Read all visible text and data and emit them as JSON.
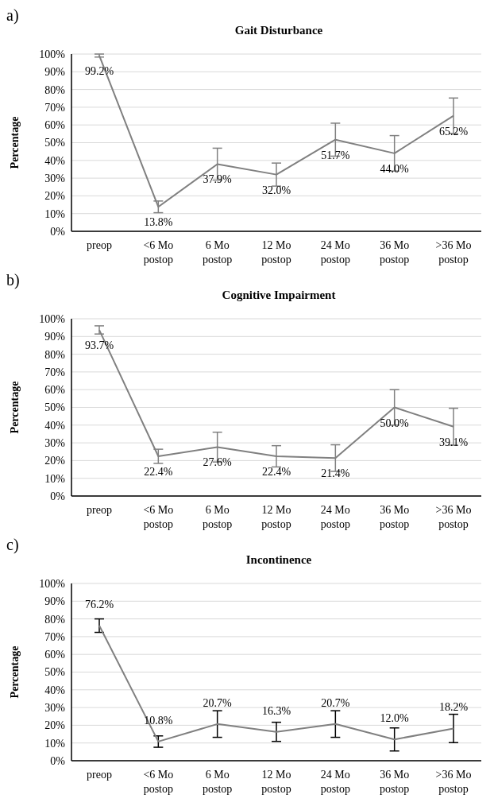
{
  "chart_data": [
    {
      "type": "line",
      "annotations": [
        "a)"
      ],
      "title": "Gait Disturbance",
      "ylabel": "Percentage",
      "categories": [
        "preop",
        "<6 Mo postop",
        "6 Mo postop",
        "12 Mo postop",
        "24 Mo postop",
        "36 Mo postop",
        ">36 Mo postop"
      ],
      "series": [
        {
          "color": "#808080",
          "values": [
            99.2,
            13.8,
            37.9,
            32.0,
            51.7,
            44.0,
            65.2
          ],
          "errors": [
            [
              98.3,
              100
            ],
            3.3,
            9,
            6.5,
            9.3,
            10,
            10
          ],
          "value_labels": [
            "99.2%",
            "13.8%",
            "37.9%",
            "32.0%",
            "51.7%",
            "44.0%",
            "65.2%"
          ]
        }
      ],
      "ylim": [
        0,
        100
      ],
      "yticks": [
        {
          "value": 0,
          "label": "0%"
        },
        {
          "value": 10,
          "label": "10%"
        },
        {
          "value": 20,
          "label": "20%"
        },
        {
          "value": 30,
          "label": "30%"
        },
        {
          "value": 40,
          "label": "40%"
        },
        {
          "value": 50,
          "label": "50%"
        },
        {
          "value": 60,
          "label": "60%"
        },
        {
          "value": 70,
          "label": "70%"
        },
        {
          "value": 80,
          "label": "80%"
        },
        {
          "value": 90,
          "label": "90%"
        },
        {
          "value": 100,
          "label": "100%"
        }
      ],
      "grid": "y",
      "marker": "none",
      "line_style": "solid"
    },
    {
      "type": "line",
      "annotations": [
        "b)"
      ],
      "title": "Cognitive Impairment",
      "ylabel": "Percentage",
      "categories": [
        "preop",
        "<6 Mo postop",
        "6 Mo postop",
        "12 Mo postop",
        "24 Mo postop",
        "36 Mo postop",
        ">36 Mo postop"
      ],
      "series": [
        {
          "color": "#808080",
          "values": [
            93.7,
            22.4,
            27.6,
            22.4,
            21.4,
            50.0,
            39.1
          ],
          "errors": [
            2.3,
            4,
            8.4,
            6,
            7.5,
            10,
            10.4
          ],
          "value_labels": [
            "93.7%",
            "22.4%",
            "27.6%",
            "22.4%",
            "21.4%",
            "50.0%",
            "39.1%"
          ]
        }
      ],
      "ylim": [
        0,
        100
      ],
      "yticks": [
        {
          "value": 0,
          "label": "0%"
        },
        {
          "value": 10,
          "label": "10%"
        },
        {
          "value": 20,
          "label": "20%"
        },
        {
          "value": 30,
          "label": "30%"
        },
        {
          "value": 40,
          "label": "40%"
        },
        {
          "value": 50,
          "label": "50%"
        },
        {
          "value": 60,
          "label": "60%"
        },
        {
          "value": 70,
          "label": "70%"
        },
        {
          "value": 80,
          "label": "80%"
        },
        {
          "value": 90,
          "label": "90%"
        },
        {
          "value": 100,
          "label": "100%"
        }
      ],
      "grid": "y",
      "marker": "none",
      "line_style": "solid"
    },
    {
      "type": "line",
      "annotations": [
        "c)"
      ],
      "title": "Incontinence",
      "ylabel": "Percentage",
      "categories": [
        "preop",
        "<6 Mo postop",
        "6 Mo postop",
        "12 Mo postop",
        "24 Mo postop",
        "36 Mo postop",
        ">36 Mo postop"
      ],
      "series": [
        {
          "color": "#808080",
          "values": [
            76.2,
            10.8,
            20.7,
            16.3,
            20.7,
            12.0,
            18.2
          ],
          "errors": [
            3.8,
            3.2,
            7.5,
            5.4,
            7.5,
            6.5,
            8
          ],
          "value_labels": [
            "76.2%",
            "10.8%",
            "20.7%",
            "16.3%",
            "20.7%",
            "12.0%",
            "18.2%"
          ]
        }
      ],
      "ylim": [
        0,
        100
      ],
      "yticks": [
        {
          "value": 0,
          "label": "0%"
        },
        {
          "value": 10,
          "label": "10%"
        },
        {
          "value": 20,
          "label": "20%"
        },
        {
          "value": 30,
          "label": "30%"
        },
        {
          "value": 40,
          "label": "40%"
        },
        {
          "value": 50,
          "label": "50%"
        },
        {
          "value": 60,
          "label": "60%"
        },
        {
          "value": 70,
          "label": "70%"
        },
        {
          "value": 80,
          "label": "80%"
        },
        {
          "value": 90,
          "label": "90%"
        },
        {
          "value": 100,
          "label": "100%"
        }
      ],
      "grid": "y",
      "marker": "none",
      "line_style": "solid"
    }
  ]
}
